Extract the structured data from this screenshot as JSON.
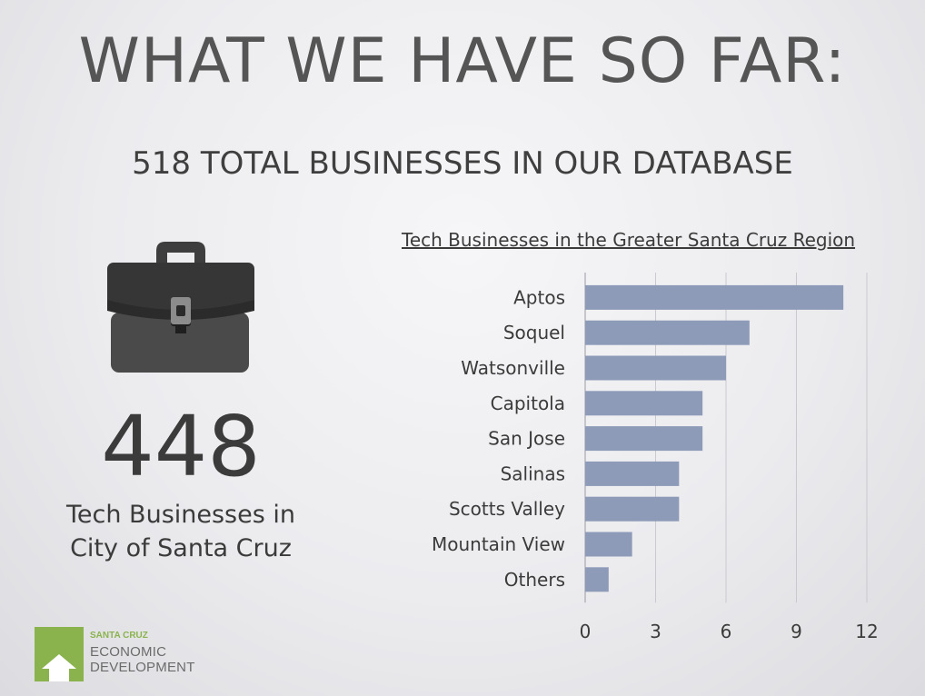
{
  "slide": {
    "title": "WHAT WE HAVE SO FAR:",
    "subtitle": "518 TOTAL BUSINESSES IN OUR DATABASE"
  },
  "stat": {
    "value": "448",
    "caption_line1": "Tech Businesses in",
    "caption_line2": "City of Santa Cruz",
    "icon": "briefcase-icon"
  },
  "logo": {
    "line1": "SANTA CRUZ",
    "line2": "ECONOMIC",
    "line3": "DEVELOPMENT",
    "color": "#8ab34d"
  },
  "chart_data": {
    "type": "bar",
    "orientation": "horizontal",
    "title": "Tech Businesses in the Greater Santa Cruz Region",
    "categories": [
      "Aptos",
      "Soquel",
      "Watsonville",
      "Capitola",
      "San Jose",
      "Salinas",
      "Scotts Valley",
      "Mountain View",
      "Others"
    ],
    "values": [
      11,
      7,
      6,
      5,
      5,
      4,
      4,
      2,
      1
    ],
    "xlim": [
      0,
      12
    ],
    "xticks": [
      0,
      3,
      6,
      9,
      12
    ],
    "grid": true,
    "bar_color": "#8e9bb8"
  }
}
